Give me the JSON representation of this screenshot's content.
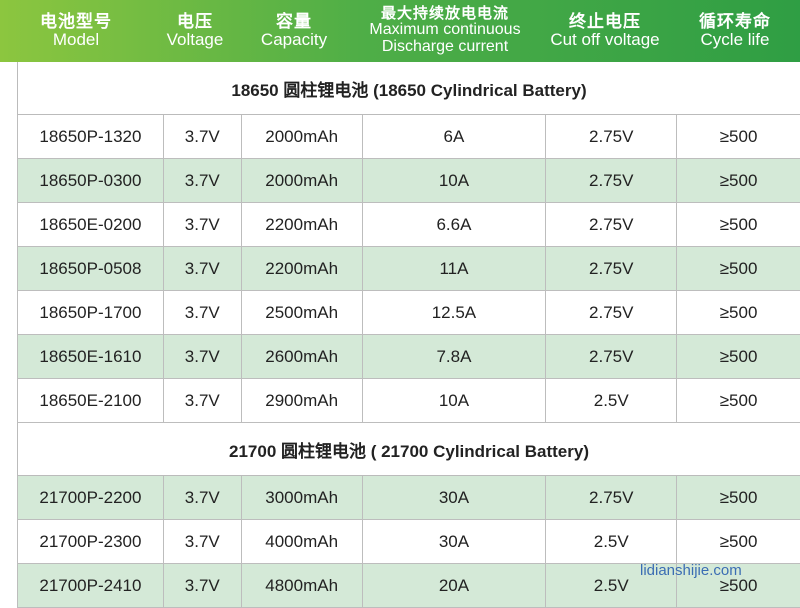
{
  "header": {
    "model": {
      "zh": "电池型号",
      "en": "Model"
    },
    "voltage": {
      "zh": "电压",
      "en": "Voltage"
    },
    "capacity": {
      "zh": "容量",
      "en": "Capacity"
    },
    "discharge": {
      "zh": "最大持续放电电流",
      "en1": "Maximum continuous",
      "en2": "Discharge current"
    },
    "cutoff": {
      "zh": "终止电压",
      "en": "Cut off voltage"
    },
    "cycle": {
      "zh": "循环寿命",
      "en": "Cycle life"
    }
  },
  "sections": [
    {
      "title": "18650 圆柱锂电池 (18650 Cylindrical Battery)",
      "rows": [
        [
          "18650P-1320",
          "3.7V",
          "2000mAh",
          "6A",
          "2.75V",
          "≥500"
        ],
        [
          "18650P-0300",
          "3.7V",
          "2000mAh",
          "10A",
          "2.75V",
          "≥500"
        ],
        [
          "18650E-0200",
          "3.7V",
          "2200mAh",
          "6.6A",
          "2.75V",
          "≥500"
        ],
        [
          "18650P-0508",
          "3.7V",
          "2200mAh",
          "11A",
          "2.75V",
          "≥500"
        ],
        [
          "18650P-1700",
          "3.7V",
          "2500mAh",
          "12.5A",
          "2.75V",
          "≥500"
        ],
        [
          "18650E-1610",
          "3.7V",
          "2600mAh",
          "7.8A",
          "2.75V",
          "≥500"
        ],
        [
          "18650E-2100",
          "3.7V",
          "2900mAh",
          "10A",
          "2.5V",
          "≥500"
        ]
      ]
    },
    {
      "title": "21700 圆柱锂电池 ( 21700 Cylindrical Battery)",
      "rows": [
        [
          "21700P-2200",
          "3.7V",
          "3000mAh",
          "30A",
          "2.75V",
          "≥500"
        ],
        [
          "21700P-2300",
          "3.7V",
          "4000mAh",
          "30A",
          "2.5V",
          "≥500"
        ],
        [
          "21700P-2410",
          "3.7V",
          "4800mAh",
          "20A",
          "2.5V",
          "≥500"
        ]
      ]
    }
  ],
  "watermark": "lidianshijie.com"
}
